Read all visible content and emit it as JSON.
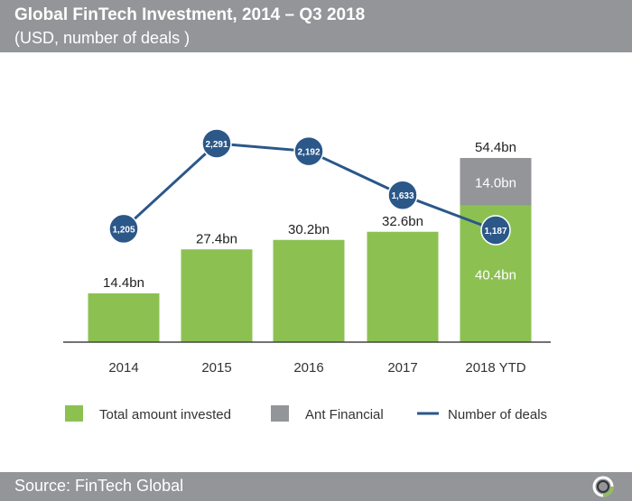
{
  "header": {
    "title": "Global FinTech Investment, 2014 – Q3 2018",
    "subtitle": "(USD, number of deals )"
  },
  "footer": {
    "source": "Source: FinTech Global",
    "logo": "fintech-global-ring-logo"
  },
  "colors": {
    "green": "#8cc152",
    "gray": "#939598",
    "blue": "#2b5789"
  },
  "chart_data": {
    "type": "bar",
    "categories": [
      "2014",
      "2015",
      "2016",
      "2017",
      "2018 YTD"
    ],
    "series": [
      {
        "name": "Total amount invested",
        "type": "bar",
        "values": [
          14.4,
          27.4,
          30.2,
          32.6,
          40.4
        ],
        "labels": [
          "14.4bn",
          "27.4bn",
          "30.2bn",
          "32.6bn",
          "40.4bn"
        ]
      },
      {
        "name": "Ant Financial",
        "type": "bar-stacked",
        "values": [
          0,
          0,
          0,
          0,
          14.0
        ],
        "labels": [
          "",
          "",
          "",
          "",
          "14.0bn"
        ]
      },
      {
        "name": "Number of deals",
        "type": "line",
        "values": [
          1205,
          2291,
          2192,
          1633,
          1187
        ],
        "labels": [
          "1,205",
          "2,291",
          "2,192",
          "1,633",
          "1,187"
        ]
      }
    ],
    "total_labels": [
      "",
      "",
      "",
      "",
      "54.4bn"
    ],
    "legend": "bottom"
  }
}
